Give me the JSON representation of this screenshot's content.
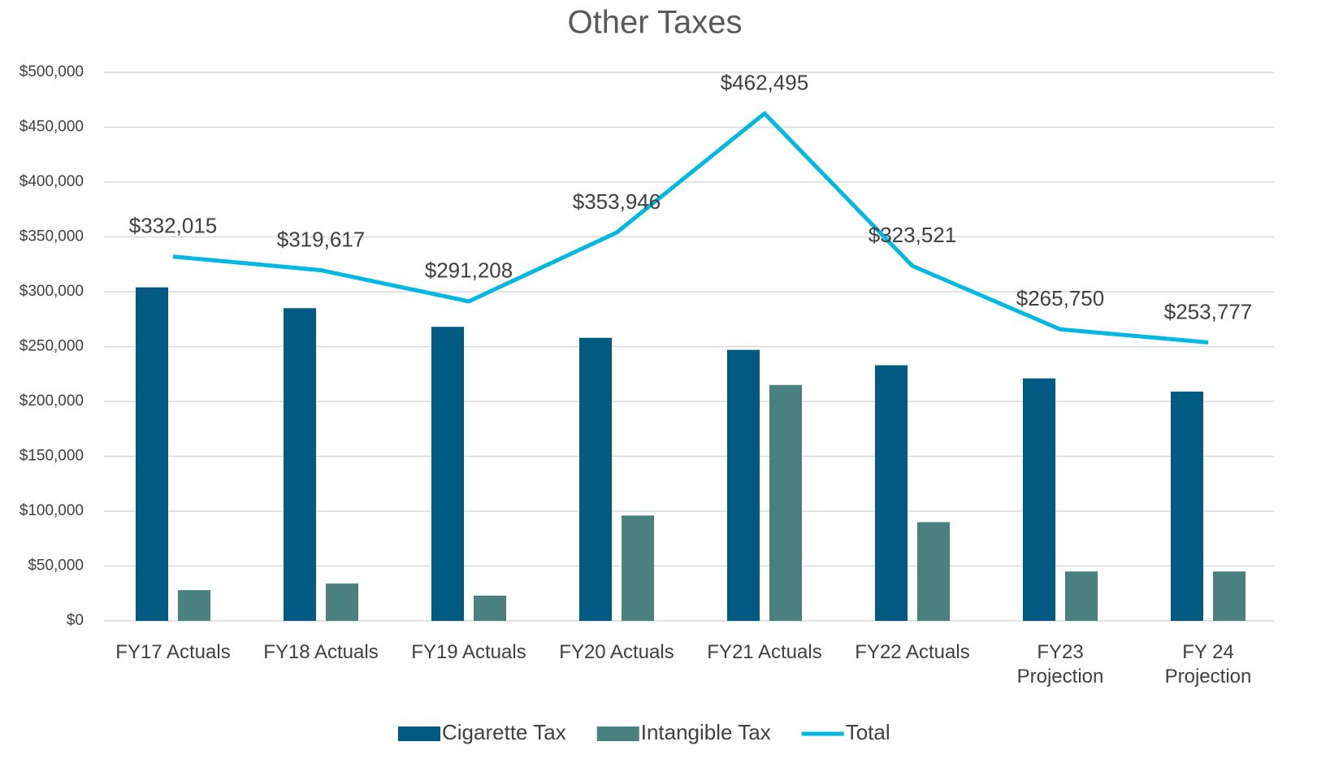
{
  "chart_data": {
    "type": "bar_line",
    "title": "Other Taxes",
    "categories": [
      "FY17 Actuals",
      "FY18 Actuals",
      "FY19 Actuals",
      "FY20 Actuals",
      "FY21 Actuals",
      "FY22 Actuals",
      "FY23 Projection",
      "FY 24 Projection"
    ],
    "series": [
      {
        "name": "Cigarette Tax",
        "type": "bar",
        "color": "#005a82",
        "values": [
          304000,
          285000,
          268000,
          258000,
          247000,
          233000,
          221000,
          209000
        ]
      },
      {
        "name": "Intangible Tax",
        "type": "bar",
        "color": "#4a8080",
        "values": [
          28000,
          34000,
          23000,
          96000,
          215000,
          90000,
          45000,
          45000
        ]
      },
      {
        "name": "Total",
        "type": "line",
        "color": "#00b8e0",
        "values": [
          332015,
          319617,
          291208,
          353946,
          462495,
          323521,
          265750,
          253777
        ],
        "value_labels": [
          "$332,015",
          "$319,617",
          "$291,208",
          "$353,946",
          "$462,495",
          "$323,521",
          "$265,750",
          "$253,777"
        ]
      }
    ],
    "ylim": [
      0,
      500000
    ],
    "yticks": [
      {
        "value": 0,
        "label": "$0"
      },
      {
        "value": 50000,
        "label": "$50,000"
      },
      {
        "value": 100000,
        "label": "$100,000"
      },
      {
        "value": 150000,
        "label": "$150,000"
      },
      {
        "value": 200000,
        "label": "$200,000"
      },
      {
        "value": 250000,
        "label": "$250,000"
      },
      {
        "value": 300000,
        "label": "$300,000"
      },
      {
        "value": 350000,
        "label": "$350,000"
      },
      {
        "value": 400000,
        "label": "$400,000"
      },
      {
        "value": 450000,
        "label": "$450,000"
      },
      {
        "value": 500000,
        "label": "$500,000"
      }
    ],
    "grid": true,
    "legend": "bottom"
  }
}
